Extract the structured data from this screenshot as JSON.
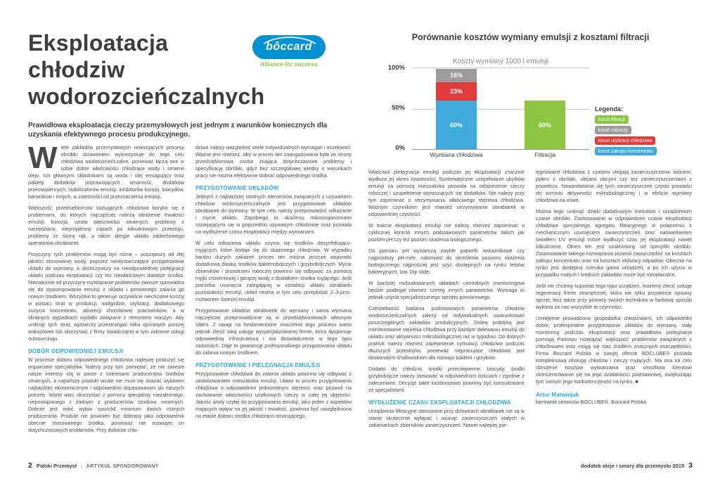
{
  "colors": {
    "accent_blue": "#29ABE2",
    "logo_blue": "#0091D2",
    "green": "#8CC63F",
    "red": "#E23B3B",
    "gray": "#9B9B9B",
    "bar_blue": "#3FA9DC"
  },
  "left_page": {
    "title_lines": [
      "Eksploatacja",
      "chłodziw",
      "wodorozcieńczalnych"
    ],
    "logo": {
      "text": "bôccard",
      "tagline": "Alliance for success"
    },
    "lead": "Prawidłowa eksploatacja cieczy przemysłowych jest jednym z warunków koniecznych dla uzyskania efektywnego procesu produkcyjnego.",
    "col1": [
      {
        "t": "p",
        "d": "W",
        "x": "iele zakładów przemysłowych realizujących procesy obróbki skrawaniem wykorzystuje do tego celu chłodziwa wodorozcieńczalne, ponieważ łączą one w sobie dobre właściwości chłodzące wody i smarne oleju. Ich głównymi składnikami są woda i olej emulgujący oraz pakiety dodatków poprawiających smarność, dodatków przeciwpiennych, stabilizatorów emulsji, inhibitorów korozji, biocydów, barwników i innych, w zależności od przeznaczenia emulsji."
      },
      {
        "t": "p",
        "x": "Większość przedsiębiorców stosujących chłodziwa boryka się z problemami, do których najczęściej należą obniżenie trwałości emulsji, korozja, utrata właściwości smarnych, problemy z narzędziami, nieprzyjemny zapach po kilkudniowym przestoju, problemy ze skórą rąk, a także alergie układu oddechowego operatorów obrabiarek."
      },
      {
        "t": "p",
        "x": "Przyczyny tych problemów mogą być różne – począwszy od złej jakości stosowanej wody, poprzez niewystarczające przygotowanie układu do wymiany, a skończywszy na nieodpowiedniej pielęgnacji układu podczas eksploatacji czy też niewłaściwym doborze środka. Niezależnie od przyczyny rozwiązanie problemów zawsze sprowadza się do wypompowania emulsji z układu i ponownego zalania go nowym środkiem. Wszystko to generuje oczywiście niechciane koszty w postaci strat w produkcji, nadgodzin, utylizacji, dodatkowego zużycia koncentratu, absencji chorobowej pracowników, a w skrajnych wypadkach wydatki związane z remontem maszyn. Aby uniknąć tych strat, wystarczy przestrzegać kilku opisanych poniżej wskazówek lub skorzystać z firmy świadczącej w tym zakresie usługi outsourcingu."
      },
      {
        "t": "h",
        "x": "DOBÓR ODPOWIEDNIEJ EMULSJI"
      },
      {
        "t": "p",
        "x": "W procesie doboru odpowiedniego chłodziwa najlepiej posłużyć się wsparciem specjalistów. Należy przy tym pamiętać, że nie zawsze nasze interesy idą w parze z interesami producentów środków smarnych, a najtańszy produkt wcale nie musi się okazać wyborem najbardziej ekonomicznym i odpowiednio dopasowanym do naszych potrzeb. Warto więc skorzystać z pomocy specjalisty niezależnego, niepowiązanego z żadnym z producentów środków smarnych. Dobrze jest mieć wybór spośród minimum dwóch różnych producentów. Produkt nie powinien być dobrany jako odpowiednik obecnie stosowanego środka, ponieważ nie rozwiąże on dotychczasowych problemów. Przy doborze chło-"
      }
    ],
    "col2": [
      {
        "t": "p",
        "x": "dziwa należy uwzględnić wiele indywidualnych wymagań i oczekiwań. Ważne jest również, aby w proces ten zaangażowana była ze strony przedsiębiorstwa osoba znająca dotychczasowe problemy i specyfikację obróbki, gdyż bez szczegółowej wiedzy o warunkach pracy nie można efektywnie dobrać odpowiedniego środka."
      },
      {
        "t": "h",
        "x": "PRZYGOTOWANIE UKŁADÓW"
      },
      {
        "t": "p",
        "x": "Jednym z najbardziej istotnych elementów związanych z używaniem chłodziw wodorozcieńczalnych jest przygotowanie układów obrabiarek do wymiany. W tym celu należy przeprowadzić odkażanie i mycie układu. Zapobiega to skażeniu mikroorganizmami rozwijającymi się w poprzednio używanym chłodziwie oraz pozwala na wydłużenie czasu eksploatacji między wymianami."
      },
      {
        "t": "p",
        "x": "W celu odkażenia układu używa się środków dezynfekująco-myjących, które dodaje się do skażonego chłodziwa. W wypadku bardzo dużych zakażeń proces ten można jeszcze wspomóc dodatkową dawką środków bakteriobójczych i grzybobójczych. Mycie zbiorników i przestrzeni roboczej powinno się odbywać za pomocą myjki ciśnieniowej i gorącej wody z dodatkiem środka myjącego. Jeśli potrzeba usunięcia zalegającej w instalacji układu obrabiarki pozostałości emulsji, układ można w tym celu przepłukać 2–3-proc. roztworem świeżej emulsji."
      },
      {
        "t": "p",
        "x": "Przygotowanie układów obrabiarek do wymiany i sama wymiana najczęściej przeprowadzane są w przedsiębiorstwach własnymi siłami. Z uwagi na fundamentalne znaczenie tego procesu warto jednak zlecić taką usługę wyspecjalizowanej firmie, która dysponuje odpowiednią infrastrukturą i ma doświadczenie w tego typu zadaniach. Daje to gwarancję profesjonalnego przygotowania układu do zalania nowym środkiem."
      },
      {
        "t": "h",
        "x": "PRZYGOTOWANIE I PIELĘGNACJA EMULSJI"
      },
      {
        "t": "p",
        "x": "Przygotowanie chłodziwa do zalania układu powinno się odbywać z zastosowaniem mieszalnika emulsji. Ułatwi to proces przygotowania chłodziwa o odpowiednim jednorodnym stężeniu oraz pozwoli na zachowanie właściwości użytkowych cieczy w całej jej objętości. Jakość wody użytej do przygotowania emulsji, jako jeden z aspektów mających wpływ na jej jakość i trwałość, powinna być uwzględniona na etapie doboru środka chłodząco-smarującego."
      }
    ]
  },
  "right_page": {
    "col1": [
      {
        "t": "p",
        "x": "Właściwa pielęgnacja emulsji podczas jej eksploatacji znacznie wydłuża jej okres żywotności. Systematyczne uzupełnianie ubytków emulsji za pomocą mieszalnika pozwala na odświeżenie cieczy roboczej i uzupełnienie wynoszących się dodatków. Nie należy przy tym zapominać o utrzymywaniu właściwego stężenia chłodziwa. Ważnym czynnikiem jest również utrzymywanie obrabiarek w odpowiedniej czystości."
      },
      {
        "t": "p",
        "x": "W trakcie eksploatacji emulsji nie należy również zapominać o cyklicznej kontroli innych podstawowych parametrów takich jak poziom pH czy też poziom skażenia biologicznego."
      },
      {
        "t": "p",
        "x": "Do pomiaru pH wystarczą zwykłe papierki wskaźnikowe czy najprostszy pH-metr, natomiast do określenia poziomu skażenia biologicznego najprościej jest użyć dostępnych na rynku testów bakteryjnych, tzw. Dip slide."
      },
      {
        "t": "p",
        "x": "W bardziej rozbudowanych układach centralnych monitoringowi będzie podlegał również szereg innych parametrów. Wymaga to jednak użycia specjalistycznego sprzętu pomiarowego."
      },
      {
        "t": "p",
        "x": "Częstotliwość badania podstawowych parametrów chłodziw wodorozcieńczalnych zależy od indywidualnych uwarunkowań poszczególnych zakładów produkcyjnych. Dobrą praktyką jest monitorowanie stężenia chłodziwa przy każdym dolewaniu emulsji do układu oraz aktywności mikrobiologicznej raz w tygodniu. Do dobrych praktyk należy również zapewnienie cyrkulacji chłodziwa podczas dłuższych przestojów, ponieważ niepracujące chłodziwo jest doskonałym środowiskiem dla rozwoju bakterii i grzybów."
      },
      {
        "t": "p",
        "x": "Dodatki do chłodziw, środki przeciwpienne, biocydy, środki grzybobójcze należy stosować w odpowiednich ilościach i zgodnie z zaleceniami. Decyzje takie każdorazowo powinny być konsultowane ze specjalistami."
      },
      {
        "t": "h",
        "x": "WYDŁUŻENIE CZASU EKSPLOATACJI CHŁODZIWA"
      },
      {
        "t": "p",
        "x": "Urządzenia filtracyjne stosowane przy dolewkach obrabiarek nie są w stanie skutecznie wyłapać i usunąć zanieczyszczeń stałych w zakamarkach zbiorników zanieczyszczeń. Nawet najlepiej pie-"
      }
    ],
    "col2": [
      {
        "t": "p",
        "x": "lęgnowane chłodziwa z czasem ulegają zanieczyszczeniu wiórami, pyłem z obróbki, olejami obcymi czy też zanieczyszczeniami z powietrza. Nawarstwianie się tych zanieczyszczeń często prowadzi do wzrostu aktywności mikrobiologicznej i w efekcie wymiany chłodziwa na nowe."
      },
      {
        "t": "p",
        "x": "Można tego uniknąć dzięki dodatkowym metodom i urządzeniom czasie obróbki. Zastosowanie w odpowiednim czasie eksploatacji chłodziwa specjalnego agregatu filtracyjnego w połączeniu z mechanicznym usunięciem zanieczyszczeń oraz naświetlaniem światłem UV emulsji może wydłużyć czas jej eksploatacji nawet kilkukrotnie. Okres ten jest uzależniony od specyfiki obróbki. Zastosowanie takiego rozwiązania pozwoli zaoszczędzić na kosztach zakupu koncentratu oraz na kosztach utylizacji odpadów. Obecnie na rynku jest dostępna szeroka gama urządzeń, a po ich użyciu w przypadku małych i średnich zakładów może być nieopłacalne."
      },
      {
        "t": "p",
        "x": "Jeśli nie chcemy kupować tego typu urządzeń, możemy zlecić usługę regeneracji firmie zewnętrznej, która nie tylko przywiezie opisany sprzęt, lecz także przy pomocy swoich techników w fachowy sposób wykona za nas wszystkie te czynności."
      },
      {
        "t": "p",
        "x": "Umiejętnie prowadzona gospodarka chłodziwami, ich odpowiedni dobór, profesjonalne przygotowanie układów do wymiany, stały monitoring podczas eksploatacji oraz prawidłowa pielęgnacja pomogą Państwu rozwiązać większość problemów związanych z chłodziwami oraz mogą się stać źródłem znacznych oszczędności. Firma Boccard Polska w swojej ofercie BOCLUBE® posiada kompleksową obsługę chłodziw i cieczy myjących. Ma ona na celu obniżenie kosztów wytwarzania oraz umożliwia klientowi skoncentrowanie się na jego działalności podstawowej, zwiększając tym samym jego konkurencyjność na rynku. ■"
      },
      {
        "t": "an",
        "x": "Artur Matwiejuk"
      },
      {
        "t": "ar",
        "x": "kierownik serwisów BOCLUBE®, Boccard Polska"
      }
    ]
  },
  "chart_data": {
    "type": "bar",
    "stacked": true,
    "title": "Porównanie kosztów wymiany emulsji z kosztami filtracji",
    "subtitle": "Koszty wymiany 1000 l emulsji",
    "ylim": [
      0,
      100
    ],
    "yticks": [
      "100%",
      "50%",
      "0%"
    ],
    "grid": true,
    "categories": [
      "Wymiana chłodziwa",
      "Filtracja"
    ],
    "bars": [
      {
        "label": "Wymiana chłodziwa",
        "segments": [
          {
            "name": "koszt zakupu koncentratu",
            "value": 60,
            "label": "60%",
            "color": "#3FA9DC"
          },
          {
            "name": "koszt utylizacji chłodziwa",
            "value": 23,
            "label": "23%",
            "color": "#E23B3B"
          },
          {
            "name": "koszt roboczy",
            "value": 16,
            "label": "16%",
            "color": "#9B9B9B"
          }
        ]
      },
      {
        "label": "Filtracja",
        "segments": [
          {
            "name": "koszt filtracji",
            "value": 60,
            "label": "60%",
            "color": "#8CC63F"
          }
        ]
      }
    ],
    "legend": {
      "title": "Legenda:",
      "position": "right",
      "items": [
        {
          "label": "koszt filtracji",
          "color": "#8CC63F"
        },
        {
          "label": "koszt roboczy",
          "color": "#9B9B9B"
        },
        {
          "label": "koszt utylizacji chłodziwa",
          "color": "#E23B3B"
        },
        {
          "label": "koszt zakupu koncentratu",
          "color": "#3FA9DC"
        }
      ]
    }
  },
  "footers": {
    "left": {
      "page": "2",
      "magazine": "Polski Przemysł",
      "separator": "|",
      "section": "ARTYKUŁ SPONSOROWANY"
    },
    "right": {
      "text": "dodatek oleje i smary dla przemysłu 2015",
      "page": "3"
    }
  }
}
